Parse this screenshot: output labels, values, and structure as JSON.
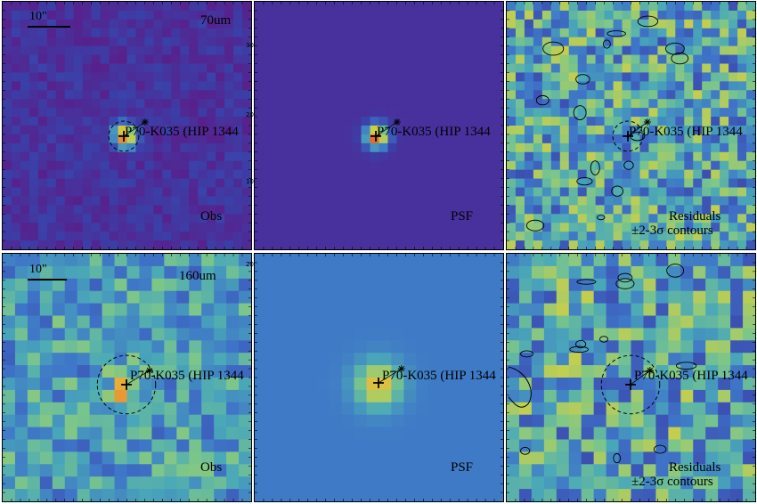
{
  "target_label": "P70-K035 (HIP 1344",
  "scalebar_label": "10\"",
  "panels": [
    {
      "id": "obs70",
      "label": "Obs",
      "band_label": "70um",
      "scale": "obs",
      "show_scalebar": true
    },
    {
      "id": "psf70",
      "label": "PSF",
      "band_label": "",
      "scale": "psf"
    },
    {
      "id": "res70",
      "label": "Residuals",
      "label2": "±2-3σ contours",
      "band_label": "",
      "scale": "res"
    },
    {
      "id": "obs160",
      "label": "Obs",
      "band_label": "160um",
      "scale": "obs",
      "show_scalebar": true
    },
    {
      "id": "psf160",
      "label": "PSF",
      "band_label": "",
      "scale": "psf"
    },
    {
      "id": "res160",
      "label": "Residuals",
      "label2": "±2-3σ contours",
      "band_label": "",
      "scale": "res"
    }
  ],
  "colors": {
    "background_obs70": "#4a2a8a",
    "background_psf70": "#4b2a93",
    "background_psf160": "#4a90c8",
    "peak": "#e03a1a",
    "mid": "#3fb0a0",
    "high": "#d9c23a"
  },
  "tick_numbers": {
    "right_top": "30",
    "right_mid1": "20",
    "right_mid2": "10",
    "right_bottom": "20"
  }
}
